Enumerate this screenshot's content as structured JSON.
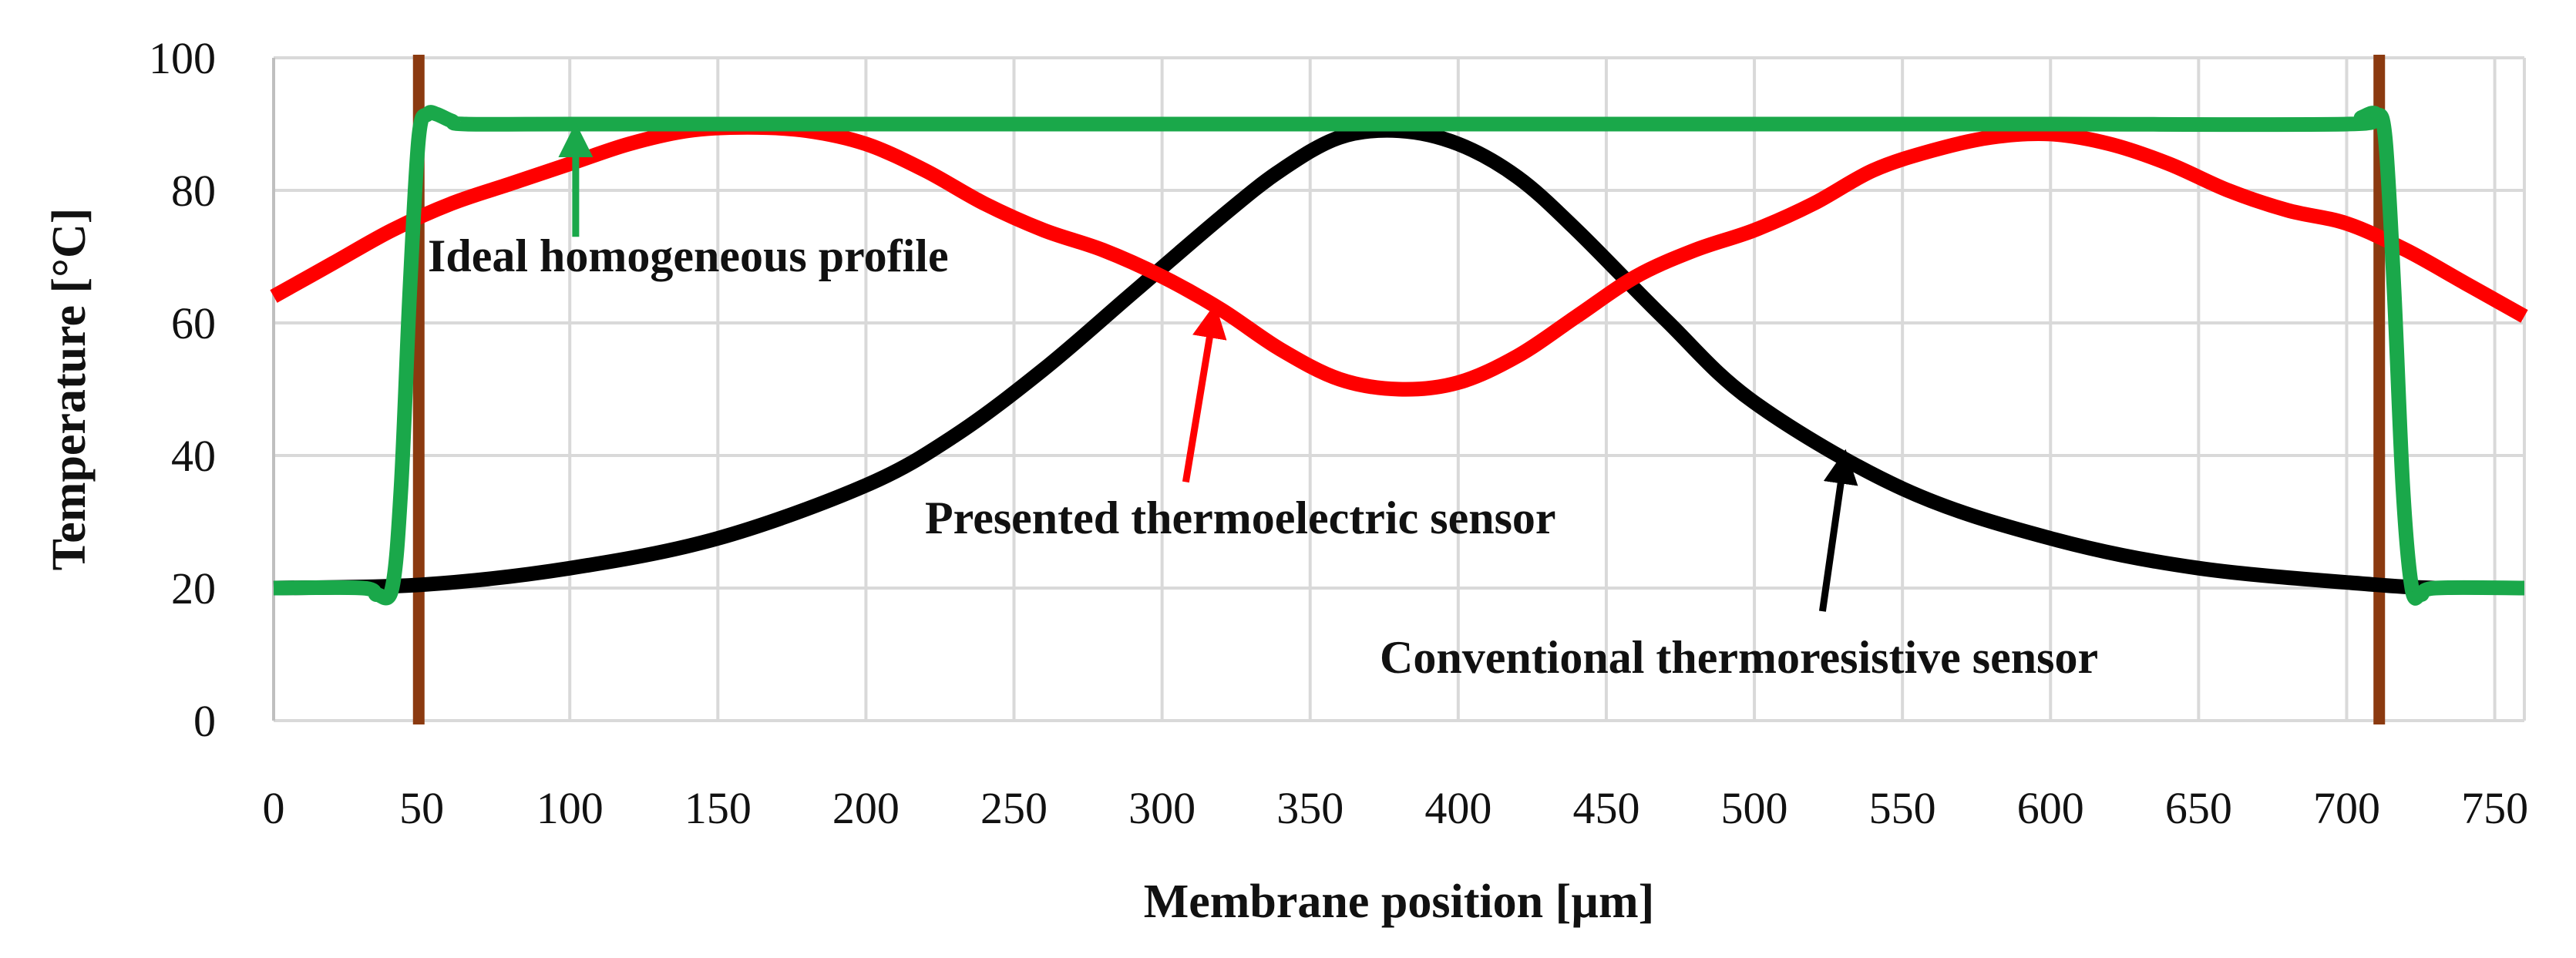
{
  "chart_data": {
    "type": "line",
    "title": "",
    "xlabel": "Membrane position [µm]",
    "ylabel": "Temperature [°C]",
    "xlim": [
      0,
      760
    ],
    "ylim": [
      0,
      100
    ],
    "grid": true,
    "x_ticks": [
      0,
      50,
      100,
      150,
      200,
      250,
      300,
      350,
      400,
      450,
      500,
      550,
      600,
      650,
      700,
      750
    ],
    "y_ticks": [
      0,
      20,
      40,
      60,
      80,
      100
    ],
    "series": [
      {
        "name": "Ideal homogeneous profile",
        "color": "#1aa84a",
        "x": [
          0,
          30,
          35,
          40,
          43,
          46,
          49,
          52,
          55,
          60,
          65,
          100,
          200,
          300,
          400,
          500,
          600,
          700,
          705,
          710,
          713,
          716,
          719,
          722,
          725,
          730,
          760
        ],
        "values": [
          20,
          20,
          19,
          20,
          35,
          65,
          88,
          91.5,
          91.5,
          90.5,
          90,
          90,
          90,
          90,
          90,
          90,
          90,
          90,
          91,
          91.5,
          88,
          65,
          35,
          20,
          19,
          20,
          20
        ]
      },
      {
        "name": "Presented thermoelectric sensor",
        "color": "#ff0000",
        "x": [
          0,
          20,
          40,
          60,
          80,
          100,
          120,
          140,
          160,
          180,
          200,
          220,
          240,
          260,
          280,
          300,
          320,
          340,
          360,
          380,
          400,
          420,
          440,
          460,
          480,
          500,
          520,
          540,
          560,
          580,
          600,
          620,
          640,
          660,
          680,
          700,
          720,
          740,
          760
        ],
        "values": [
          64,
          69,
          74,
          78,
          81,
          84,
          87,
          89,
          89.5,
          89,
          87,
          83,
          78,
          74,
          71,
          67,
          62,
          56,
          51.5,
          50,
          51,
          55,
          61,
          67,
          71,
          74,
          78,
          83,
          86,
          88,
          88.5,
          87,
          84,
          80,
          77,
          75,
          71,
          66,
          61
        ]
      },
      {
        "name": "Conventional thermoresistive sensor",
        "color": "#000000",
        "x": [
          0,
          50,
          100,
          150,
          200,
          230,
          260,
          290,
          320,
          340,
          360,
          380,
          400,
          420,
          440,
          470,
          500,
          550,
          600,
          650,
          710,
          730
        ],
        "values": [
          20,
          20.5,
          23,
          27.5,
          35.5,
          43,
          53,
          64.5,
          76,
          83,
          88,
          89,
          87,
          82,
          74,
          60.5,
          48,
          35,
          27.5,
          23,
          20.5,
          20
        ]
      }
    ],
    "vertical_markers": [
      {
        "name": "left membrane edge",
        "x": 49,
        "color": "#8b3a10"
      },
      {
        "name": "right membrane edge",
        "x": 711,
        "color": "#8b3a10"
      }
    ],
    "annotations": [
      {
        "text": "Ideal homogeneous profile",
        "series": "Ideal homogeneous profile",
        "arrow_x": 102,
        "arrow_y_from": 73,
        "arrow_y_to": 89
      },
      {
        "text": "Presented thermoelectric sensor",
        "series": "Presented thermoelectric sensor",
        "arrow_x_from": 308,
        "arrow_y_from": 36,
        "arrow_x_to": 317,
        "arrow_y_to": 62
      },
      {
        "text": "Conventional thermoresistive sensor",
        "series": "Conventional thermoresistive sensor",
        "arrow_x_from": 523,
        "arrow_y_from": 16.5,
        "arrow_x_to": 530,
        "arrow_y_to": 40
      }
    ]
  }
}
